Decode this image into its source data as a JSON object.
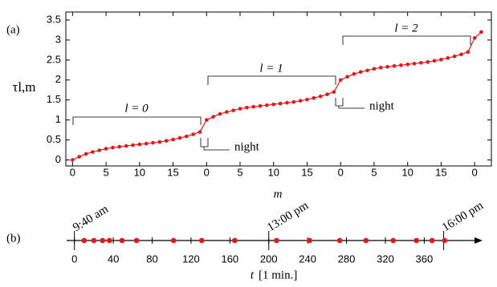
{
  "chart_data": [
    {
      "type": "line",
      "panel_label": "(a)",
      "x_label": "m",
      "y_label": "τl,m",
      "color": "#e8141c",
      "x": [
        0,
        1,
        2,
        3,
        4,
        5,
        6,
        7,
        8,
        9,
        10,
        11,
        12,
        13,
        14,
        15,
        16,
        17,
        18,
        19,
        20,
        21,
        22,
        23,
        24,
        25,
        26,
        27,
        28,
        29,
        30,
        31,
        32,
        33,
        34,
        35,
        36,
        37,
        38,
        39,
        40,
        41,
        42,
        43,
        44,
        45,
        46,
        47,
        48,
        49,
        50,
        51,
        52,
        53,
        54,
        55,
        56,
        57,
        58,
        59,
        60,
        61
      ],
      "values": [
        0,
        0.08,
        0.15,
        0.2,
        0.24,
        0.28,
        0.31,
        0.33,
        0.35,
        0.37,
        0.39,
        0.41,
        0.43,
        0.45,
        0.48,
        0.51,
        0.55,
        0.59,
        0.64,
        0.7,
        1.0,
        1.08,
        1.15,
        1.2,
        1.24,
        1.28,
        1.31,
        1.33,
        1.35,
        1.37,
        1.39,
        1.41,
        1.43,
        1.45,
        1.48,
        1.51,
        1.55,
        1.59,
        1.64,
        1.7,
        2.0,
        2.08,
        2.15,
        2.2,
        2.24,
        2.28,
        2.31,
        2.33,
        2.35,
        2.37,
        2.39,
        2.41,
        2.43,
        2.45,
        2.48,
        2.51,
        2.55,
        2.59,
        2.64,
        2.7,
        3.05,
        3.2
      ],
      "xlim": [
        -1,
        62.5
      ],
      "ylim": [
        -0.15,
        3.7
      ],
      "xticks": [
        0,
        5,
        10,
        15,
        {
          "value": 20,
          "label": "0"
        },
        {
          "value": 25,
          "label": "5"
        },
        {
          "value": 30,
          "label": "10"
        },
        {
          "value": 35,
          "label": "15"
        },
        {
          "value": 40,
          "label": "0"
        },
        {
          "value": 45,
          "label": "5"
        },
        {
          "value": 50,
          "label": "10"
        },
        {
          "value": 55,
          "label": "15"
        },
        {
          "value": 60,
          "label": "0"
        }
      ],
      "yticks": [
        0,
        0.5,
        1,
        1.5,
        2,
        2.5,
        3,
        3.5
      ],
      "annotations": [
        "l = 0",
        "l = 1",
        "l = 2",
        "night",
        "night"
      ]
    },
    {
      "type": "timeline",
      "panel_label": "(b)",
      "x_label": "t",
      "x_unit": "[1 min.]",
      "color": "#e8141c",
      "x": [
        10,
        20,
        29,
        36,
        49,
        64,
        102,
        131,
        165,
        208,
        242,
        273,
        300,
        328,
        352,
        368,
        381
      ],
      "xlim": [
        -8,
        420
      ],
      "xticks": [
        0,
        40,
        80,
        120,
        160,
        200,
        240,
        280,
        320,
        360
      ],
      "annotations": [
        {
          "x": 0,
          "label": "9:40 am"
        },
        {
          "x": 200,
          "label": "13:00 pm"
        },
        {
          "x": 380,
          "label": "16:00 pm"
        }
      ]
    }
  ]
}
